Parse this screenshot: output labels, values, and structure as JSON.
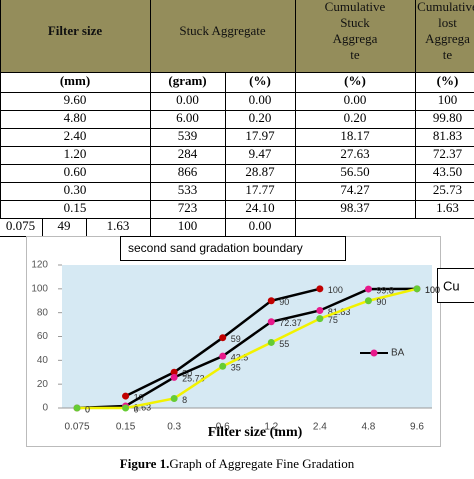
{
  "table": {
    "header": [
      [
        "Filter size"
      ],
      [
        "Stuck Aggregate"
      ],
      [
        "Cumulative",
        "Stuck",
        "Aggrega",
        "te"
      ],
      [
        "Cumulative",
        "lost",
        "Aggrega",
        "te"
      ]
    ],
    "units": [
      "(mm)",
      "(gram)",
      "(%)",
      "(%)",
      "(%)"
    ],
    "rows": [
      [
        "9.60",
        "0.00",
        "0.00",
        "0.00",
        "100"
      ],
      [
        "4.80",
        "6.00",
        "0.20",
        "0.20",
        "99.80"
      ],
      [
        "2.40",
        "539",
        "17.97",
        "18.17",
        "81.83"
      ],
      [
        "1.20",
        "284",
        "9.47",
        "27.63",
        "72.37"
      ],
      [
        "0.60",
        "866",
        "28.87",
        "56.50",
        "43.50"
      ],
      [
        "0.30",
        "533",
        "17.77",
        "74.27",
        "25.73"
      ],
      [
        "0.15",
        "723",
        "24.10",
        "98.37",
        "1.63"
      ]
    ],
    "last_row": [
      "0.075",
      "49",
      "1.63",
      "100",
      "0.00"
    ]
  },
  "chart_data": {
    "type": "line",
    "title": "second sand gradation boundary",
    "x_label": "Filter size (mm)",
    "side_text": "Cu",
    "categories": [
      "0.075",
      "0.15",
      "0.3",
      "0.6",
      "1.2",
      "2.4",
      "4.8",
      "9.6"
    ],
    "ylim": [
      0,
      120
    ],
    "yticks": [
      0,
      20,
      40,
      60,
      80,
      100,
      120
    ],
    "series": [
      {
        "color": "#c00000",
        "line_color": "#000000",
        "values": [
          null,
          10,
          30,
          59,
          90,
          100,
          null,
          null
        ]
      },
      {
        "name": "BA",
        "color": "#e8198b",
        "line_color": "#000000",
        "values": [
          0,
          1.63,
          25.73,
          43.5,
          72.37,
          81.83,
          99.8,
          100
        ]
      },
      {
        "color": "#66cc33",
        "line_color": "#f2f200",
        "values": [
          0,
          0,
          8,
          35,
          55,
          75,
          90,
          100
        ]
      }
    ]
  },
  "caption": {
    "label": "Figure 1.",
    "text": "Graph of Aggregate Fine Gradation"
  }
}
